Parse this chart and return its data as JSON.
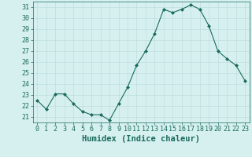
{
  "x": [
    0,
    1,
    2,
    3,
    4,
    5,
    6,
    7,
    8,
    9,
    10,
    11,
    12,
    13,
    14,
    15,
    16,
    17,
    18,
    19,
    20,
    21,
    22,
    23
  ],
  "y": [
    22.5,
    21.7,
    23.1,
    23.1,
    22.2,
    21.5,
    21.2,
    21.2,
    20.7,
    22.2,
    23.7,
    25.7,
    27.0,
    28.6,
    30.8,
    30.5,
    30.8,
    31.2,
    30.8,
    29.3,
    27.0,
    26.3,
    25.7,
    24.3
  ],
  "line_color": "#1a6b5a",
  "marker": "D",
  "marker_size": 2,
  "bg_color": "#d6f0ef",
  "grid_color": "#b8dad8",
  "xlabel": "Humidex (Indice chaleur)",
  "xlim": [
    -0.5,
    23.5
  ],
  "ylim": [
    20.5,
    31.5
  ],
  "yticks": [
    21,
    22,
    23,
    24,
    25,
    26,
    27,
    28,
    29,
    30,
    31
  ],
  "xticks": [
    0,
    1,
    2,
    3,
    4,
    5,
    6,
    7,
    8,
    9,
    10,
    11,
    12,
    13,
    14,
    15,
    16,
    17,
    18,
    19,
    20,
    21,
    22,
    23
  ],
  "xlabel_color": "#1a6b5a",
  "tick_color": "#1a6b5a",
  "axis_color": "#1a6b5a",
  "xlabel_fontsize": 7.5,
  "tick_fontsize": 6.0,
  "linewidth": 0.8
}
